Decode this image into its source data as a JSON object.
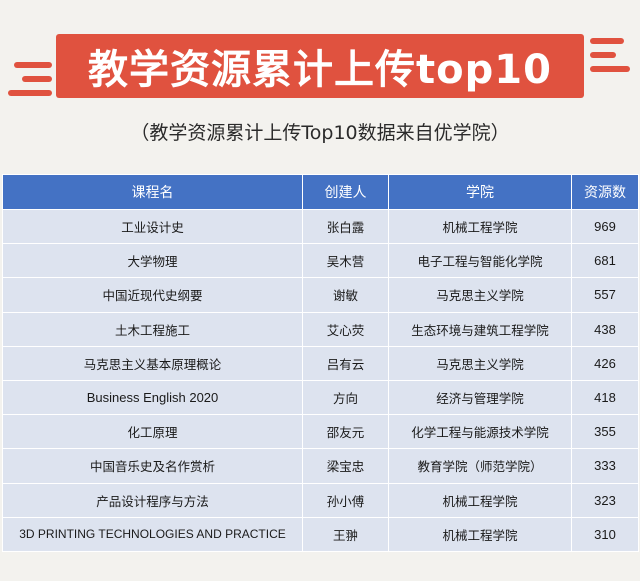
{
  "banner": {
    "title": "教学资源累计上传top10"
  },
  "subtitle": "（教学资源累计上传Top10数据来自优学院）",
  "table": {
    "headers": [
      "课程名",
      "创建人",
      "学院",
      "资源数"
    ],
    "rows": [
      {
        "course": "工业设计史",
        "creator": "张白露",
        "college": "机械工程学院",
        "count": "969"
      },
      {
        "course": "大学物理",
        "creator": "吴木营",
        "college": "电子工程与智能化学院",
        "count": "681"
      },
      {
        "course": "中国近现代史纲要",
        "creator": "谢敏",
        "college": "马克思主义学院",
        "count": "557"
      },
      {
        "course": "土木工程施工",
        "creator": "艾心荧",
        "college": "生态环境与建筑工程学院",
        "count": "438"
      },
      {
        "course": "马克思主义基本原理概论",
        "creator": "吕有云",
        "college": "马克思主义学院",
        "count": "426"
      },
      {
        "course": "Business English 2020",
        "creator": "方向",
        "college": "经济与管理学院",
        "count": "418"
      },
      {
        "course": "化工原理",
        "creator": "邵友元",
        "college": "化学工程与能源技术学院",
        "count": "355"
      },
      {
        "course": "中国音乐史及名作赏析",
        "creator": "梁宝忠",
        "college": "教育学院（师范学院）",
        "count": "333"
      },
      {
        "course": "产品设计程序与方法",
        "creator": "孙小傅",
        "college": "机械工程学院",
        "count": "323"
      },
      {
        "course": "3D PRINTING TECHNOLOGIES AND PRACTICE",
        "creator": "王翀",
        "college": "机械工程学院",
        "count": "310"
      }
    ]
  },
  "colors": {
    "banner": "#e0523f",
    "header": "#4472c4",
    "row": "#dde3ef",
    "background": "#f3f2ee"
  }
}
